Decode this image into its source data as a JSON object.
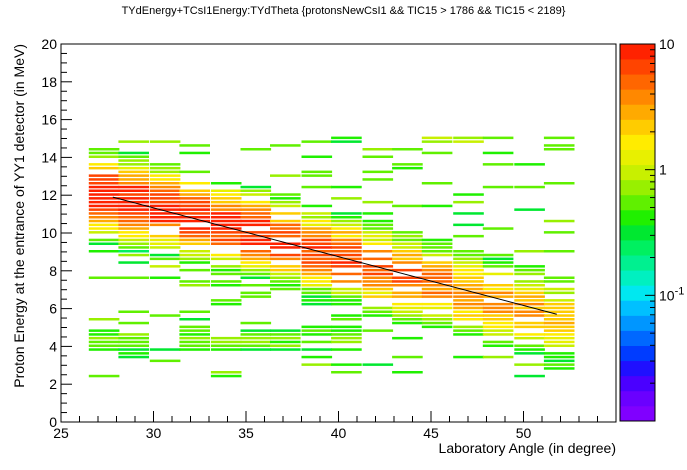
{
  "chart_data": {
    "type": "heatmap",
    "title": "TYdEnergy+TCsI1Energy:TYdTheta {protonsNewCsI1 &&  TIC15 > 1786 && TIC15 < 2189}",
    "xlabel": "Laboratory Angle (in degree)",
    "ylabel": "Proton Energy at the entrance of YY1 detector (in MeV)",
    "xlim": [
      25,
      55
    ],
    "ylim": [
      0,
      20
    ],
    "x_ticks": [
      "25",
      "30",
      "35",
      "40",
      "45",
      "50"
    ],
    "x_tick_values": [
      25,
      30,
      35,
      40,
      45,
      50
    ],
    "y_ticks": [
      "0",
      "2",
      "4",
      "6",
      "8",
      "10",
      "12",
      "14",
      "16",
      "18",
      "20"
    ],
    "y_tick_values": [
      0,
      2,
      4,
      6,
      8,
      10,
      12,
      14,
      16,
      18,
      20
    ],
    "z_scale": "log",
    "z_range": [
      0.01,
      10
    ],
    "z_ticks": [
      {
        "label": "10",
        "value": 10
      },
      {
        "label": "1",
        "value": 1
      },
      {
        "label": "10",
        "sup": "-1",
        "value": 0.1
      }
    ],
    "angle_bins": [
      26.5,
      28.1,
      29.8,
      31.4,
      33.1,
      34.7,
      36.3,
      38.0,
      39.6,
      41.3,
      42.9,
      44.5,
      46.2,
      47.8,
      49.5,
      51.1
    ],
    "band_peak_energy": [
      12.0,
      11.6,
      11.2,
      10.8,
      10.4,
      10.0,
      9.5,
      9.0,
      8.6,
      8.1,
      7.7,
      7.2,
      6.7,
      6.3,
      5.9,
      5.4
    ],
    "peak_counts": [
      10,
      9,
      8,
      8,
      7,
      8,
      7,
      6,
      6,
      5,
      5,
      4,
      3,
      3,
      2.5,
      2
    ],
    "fit_line": {
      "x": [
        27.8,
        51.8
      ],
      "y": [
        11.9,
        5.7
      ]
    },
    "grid": false
  }
}
